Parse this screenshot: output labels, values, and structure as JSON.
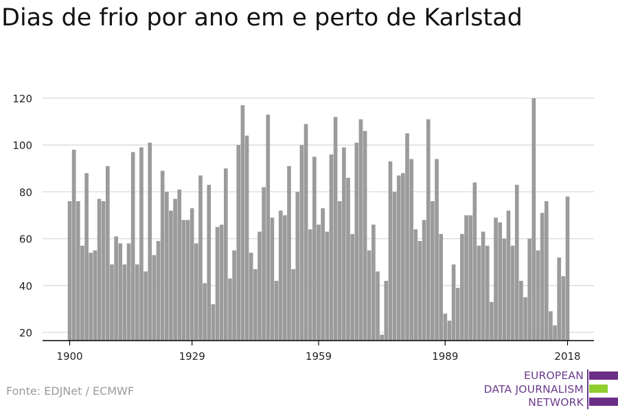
{
  "title": "Dias de frio por ano em e perto de Karlstad",
  "source": "Fonte: EDJNet / ECMWF",
  "logo": {
    "lines": [
      "EUROPEAN",
      "DATA JOURNALISM",
      "NETWORK"
    ],
    "colors": {
      "purple": "#6b2e86",
      "green": "#8fce2f"
    }
  },
  "colors": {
    "bar": "#9b9b9b",
    "grid": "#d9d9d9",
    "axis": "#000000",
    "text": "#222222"
  },
  "chart_data": {
    "type": "bar",
    "title": "Dias de frio por ano em e perto de Karlstad",
    "xlabel": "",
    "ylabel": "",
    "xlim": [
      1900,
      2018
    ],
    "ylim": [
      20,
      120
    ],
    "yticks": [
      20,
      40,
      60,
      80,
      100,
      120
    ],
    "xticks": [
      1900,
      1929,
      1959,
      1989,
      2018
    ],
    "grid": true,
    "x": [
      1900,
      1901,
      1902,
      1903,
      1904,
      1905,
      1906,
      1907,
      1908,
      1909,
      1910,
      1911,
      1912,
      1913,
      1914,
      1915,
      1916,
      1917,
      1918,
      1919,
      1920,
      1921,
      1922,
      1923,
      1924,
      1925,
      1926,
      1927,
      1928,
      1929,
      1930,
      1931,
      1932,
      1933,
      1934,
      1935,
      1936,
      1937,
      1938,
      1939,
      1940,
      1941,
      1942,
      1943,
      1944,
      1945,
      1946,
      1947,
      1948,
      1949,
      1950,
      1951,
      1952,
      1953,
      1954,
      1955,
      1956,
      1957,
      1958,
      1959,
      1960,
      1961,
      1962,
      1963,
      1964,
      1965,
      1966,
      1967,
      1968,
      1969,
      1970,
      1971,
      1972,
      1973,
      1974,
      1975,
      1976,
      1977,
      1978,
      1979,
      1980,
      1981,
      1982,
      1983,
      1984,
      1985,
      1986,
      1987,
      1988,
      1989,
      1990,
      1991,
      1992,
      1993,
      1994,
      1995,
      1996,
      1997,
      1998,
      1999,
      2000,
      2001,
      2002,
      2003,
      2004,
      2005,
      2006,
      2007,
      2008,
      2009,
      2010,
      2011,
      2012,
      2013,
      2014,
      2015,
      2016,
      2017,
      2018
    ],
    "values": [
      76,
      98,
      76,
      57,
      88,
      54,
      55,
      77,
      76,
      91,
      49,
      61,
      58,
      49,
      58,
      97,
      49,
      99,
      46,
      101,
      53,
      59,
      89,
      80,
      72,
      77,
      81,
      68,
      68,
      73,
      58,
      87,
      41,
      83,
      32,
      65,
      66,
      90,
      43,
      55,
      100,
      117,
      104,
      54,
      47,
      63,
      82,
      113,
      69,
      42,
      72,
      70,
      91,
      47,
      80,
      100,
      109,
      64,
      95,
      66,
      73,
      63,
      96,
      112,
      76,
      99,
      86,
      62,
      101,
      111,
      106,
      55,
      66,
      46,
      19,
      42,
      93,
      80,
      87,
      88,
      105,
      94,
      64,
      59,
      68,
      111,
      76,
      94,
      62,
      28,
      25,
      49,
      39,
      62,
      70,
      70,
      84,
      57,
      63,
      57,
      33,
      69,
      67,
      60,
      72,
      57,
      83,
      42,
      35,
      60,
      120,
      55,
      71,
      76,
      29,
      23,
      52,
      44,
      78
    ]
  }
}
